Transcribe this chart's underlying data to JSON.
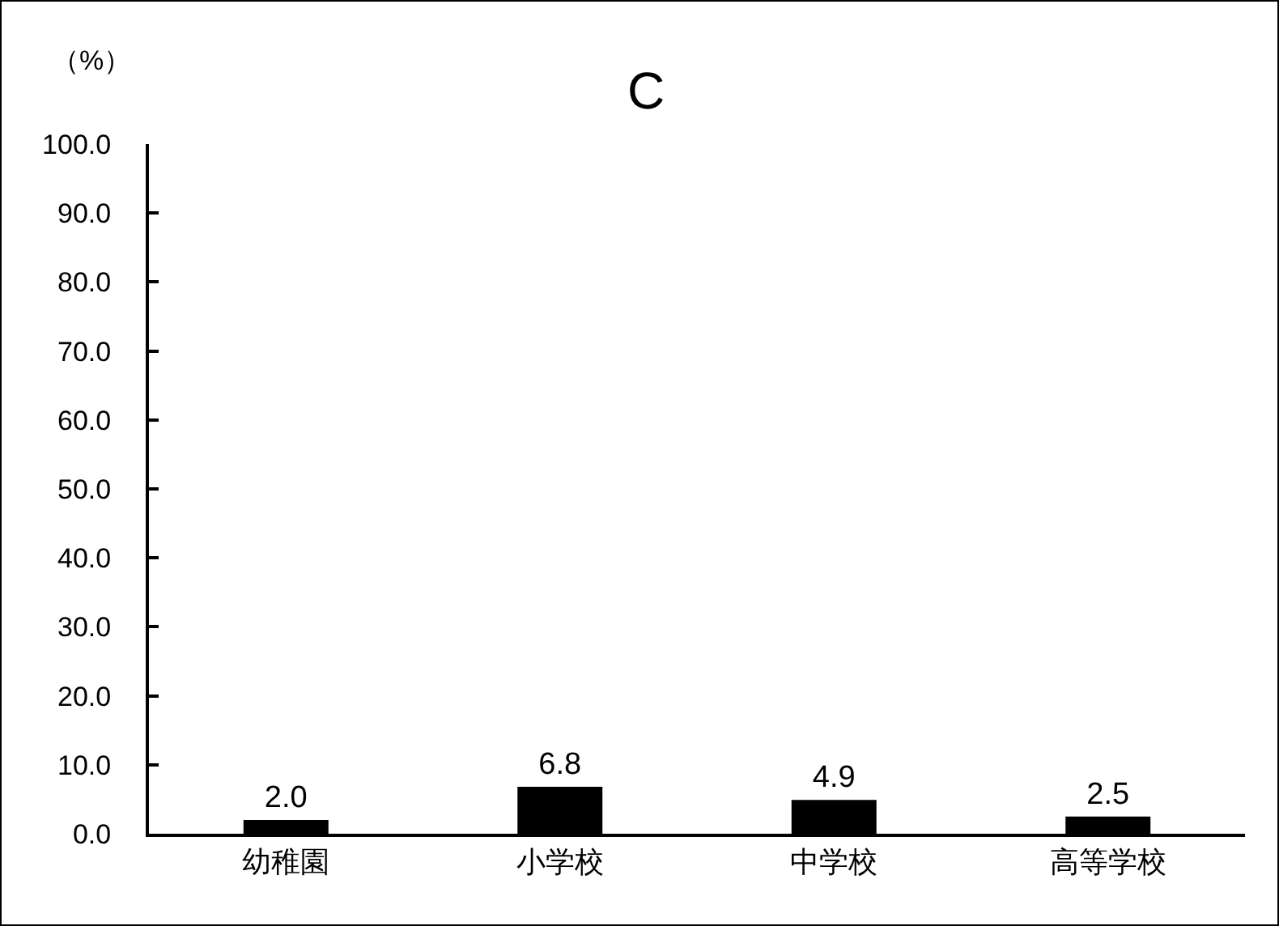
{
  "chart_data": {
    "type": "bar",
    "title": "C",
    "ylabel": "（%）",
    "categories": [
      "幼稚園",
      "小学校",
      "中学校",
      "高等学校"
    ],
    "values": [
      2.0,
      6.8,
      4.9,
      2.5
    ],
    "color": "#000000",
    "value_labels": [
      "2.0",
      "6.8",
      "4.9",
      "2.5"
    ],
    "ylim": [
      0,
      100
    ],
    "yticks": [
      {
        "value": 0,
        "label": "0.0"
      },
      {
        "value": 10,
        "label": "10.0"
      },
      {
        "value": 20,
        "label": "20.0"
      },
      {
        "value": 30,
        "label": "30.0"
      },
      {
        "value": 40,
        "label": "40.0"
      },
      {
        "value": 50,
        "label": "50.0"
      },
      {
        "value": 60,
        "label": "60.0"
      },
      {
        "value": 70,
        "label": "70.0"
      },
      {
        "value": 80,
        "label": "80.0"
      },
      {
        "value": 90,
        "label": "90.0"
      },
      {
        "value": 100,
        "label": "100.0"
      }
    ],
    "grid": false
  }
}
